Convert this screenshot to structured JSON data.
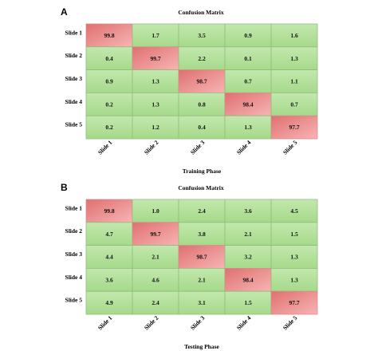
{
  "chart_data": [
    {
      "type": "heatmap",
      "panel_label": "A",
      "title": "Confusion Matrix",
      "xlabel": "Training Phase",
      "rows": [
        "Slide 1",
        "Slide 2",
        "Slide 3",
        "Slide 4",
        "Slide 5"
      ],
      "columns": [
        "Slide 1",
        "Slide 2",
        "Slide 3",
        "Slide 4",
        "Slide 5"
      ],
      "values": [
        [
          "99.8",
          "1.7",
          "3.5",
          "0.9",
          "1.6"
        ],
        [
          "0.4",
          "99.7",
          "2.2",
          "0.1",
          "1.3"
        ],
        [
          "0.9",
          "1.3",
          "98.7",
          "0.7",
          "1.1"
        ],
        [
          "0.2",
          "1.3",
          "0.8",
          "98.4",
          "0.7"
        ],
        [
          "0.2",
          "1.2",
          "0.4",
          "1.3",
          "97.7"
        ]
      ]
    },
    {
      "type": "heatmap",
      "panel_label": "B",
      "title": "Confusion Matrix",
      "xlabel": "Testing Phase",
      "rows": [
        "Slide 1",
        "Slide 2",
        "Slide 3",
        "Slide 4",
        "Slide 5"
      ],
      "columns": [
        "Slide 1",
        "Slide 2",
        "Slide 3",
        "Slide 4",
        "Slide 5"
      ],
      "values": [
        [
          "99.8",
          "1.0",
          "2.4",
          "3.6",
          "4.5"
        ],
        [
          "4.7",
          "99.7",
          "3.8",
          "2.1",
          "1.5"
        ],
        [
          "4.4",
          "2.1",
          "98.7",
          "3.2",
          "1.3"
        ],
        [
          "3.6",
          "4.6",
          "2.1",
          "98.4",
          "1.3"
        ],
        [
          "4.9",
          "2.4",
          "3.1",
          "1.5",
          "97.7"
        ]
      ]
    }
  ],
  "colors": {
    "diagonal_cell": "#ec8c8c",
    "off_diagonal_cell": "#a6d98a",
    "cell_border": "#8fbf78"
  }
}
